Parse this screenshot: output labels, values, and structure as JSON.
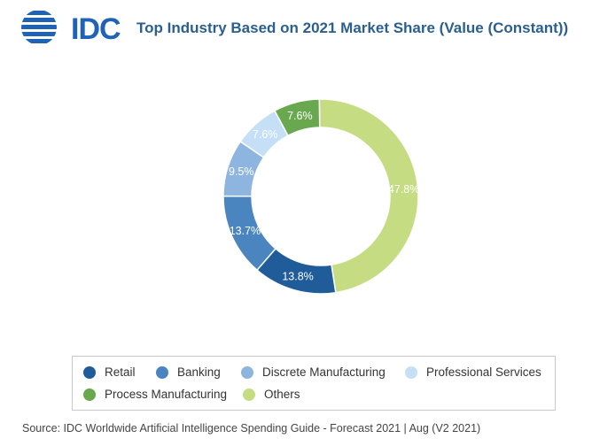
{
  "logo": {
    "text": "IDC"
  },
  "chart_data": {
    "type": "pie",
    "title": "Top Industry Based on 2021 Market Share (Value (Constant))",
    "categories": [
      "Retail",
      "Banking",
      "Discrete Manufacturing",
      "Professional Services",
      "Process Manufacturing",
      "Others"
    ],
    "values": [
      13.8,
      13.7,
      9.5,
      7.6,
      7.6,
      47.8
    ],
    "data_labels": [
      "13.8%",
      "13.7%",
      "9.5%",
      "7.6%",
      "7.6%",
      "47.8%"
    ],
    "colors": [
      "#1f5c99",
      "#4a85c0",
      "#8eb5e0",
      "#c5e0f6",
      "#6aa84f",
      "#c6dc82"
    ],
    "label_colors": [
      "#ffffff",
      "#ffffff",
      "#ffffff",
      "#ffffff",
      "#ffffff",
      "#ffffff"
    ],
    "legend_position": "bottom"
  },
  "source": "Source: IDC Worldwide Artificial Intelligence Spending Guide - Forecast 2021 | Aug (V2 2021)"
}
